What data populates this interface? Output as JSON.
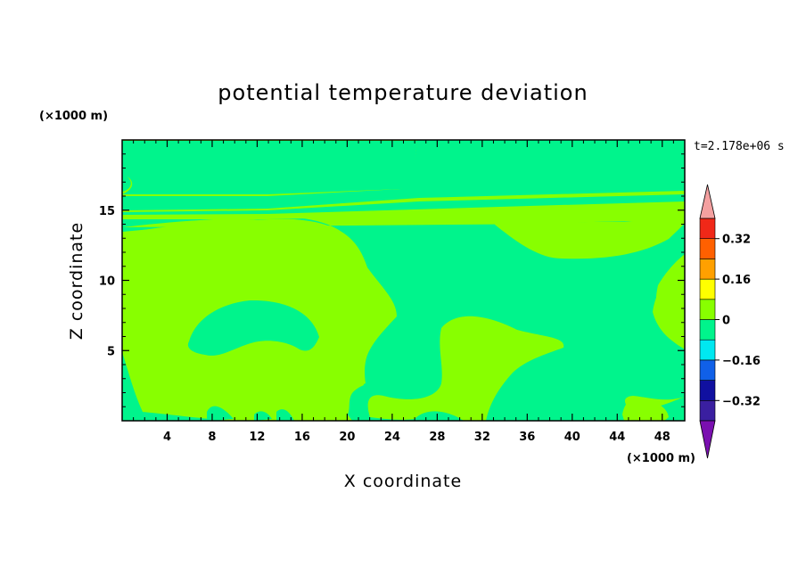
{
  "chart_data": {
    "type": "heatmap",
    "title": "potential temperature deviation",
    "xlabel": "X coordinate",
    "ylabel": "Z coordinate",
    "x_unit": "(×1000 m)",
    "y_unit": "(×1000 m)",
    "time_label": "t=2.178e+06 s",
    "xlim": [
      0,
      50
    ],
    "ylim": [
      0,
      20
    ],
    "x_ticks": [
      4,
      8,
      12,
      16,
      20,
      24,
      28,
      32,
      36,
      40,
      44,
      48
    ],
    "y_ticks": [
      5,
      10,
      15
    ],
    "colorbar": {
      "levels": [
        -0.4,
        -0.32,
        -0.24,
        -0.16,
        -0.08,
        0,
        0.08,
        0.16,
        0.24,
        0.32,
        0.4
      ],
      "tick_values": [
        0.32,
        0.16,
        0,
        -0.16,
        -0.32
      ],
      "tick_labels": [
        "0.32",
        "0.16",
        "0",
        "−0.16",
        "−0.32"
      ],
      "colors": [
        "#3a1fa0",
        "#1010a0",
        "#1060e8",
        "#00e8f0",
        "#00f48c",
        "#88ff00",
        "#ffff00",
        "#ffa000",
        "#ff6000",
        "#f02818"
      ],
      "under_color": "#7a10b0",
      "over_color": "#f4a0a0"
    },
    "fields": {
      "background_level": "0 to 0.08",
      "background_color": "#88ff00",
      "region_level": "-0.08 to 0",
      "region_color": "#00f48c"
    }
  }
}
